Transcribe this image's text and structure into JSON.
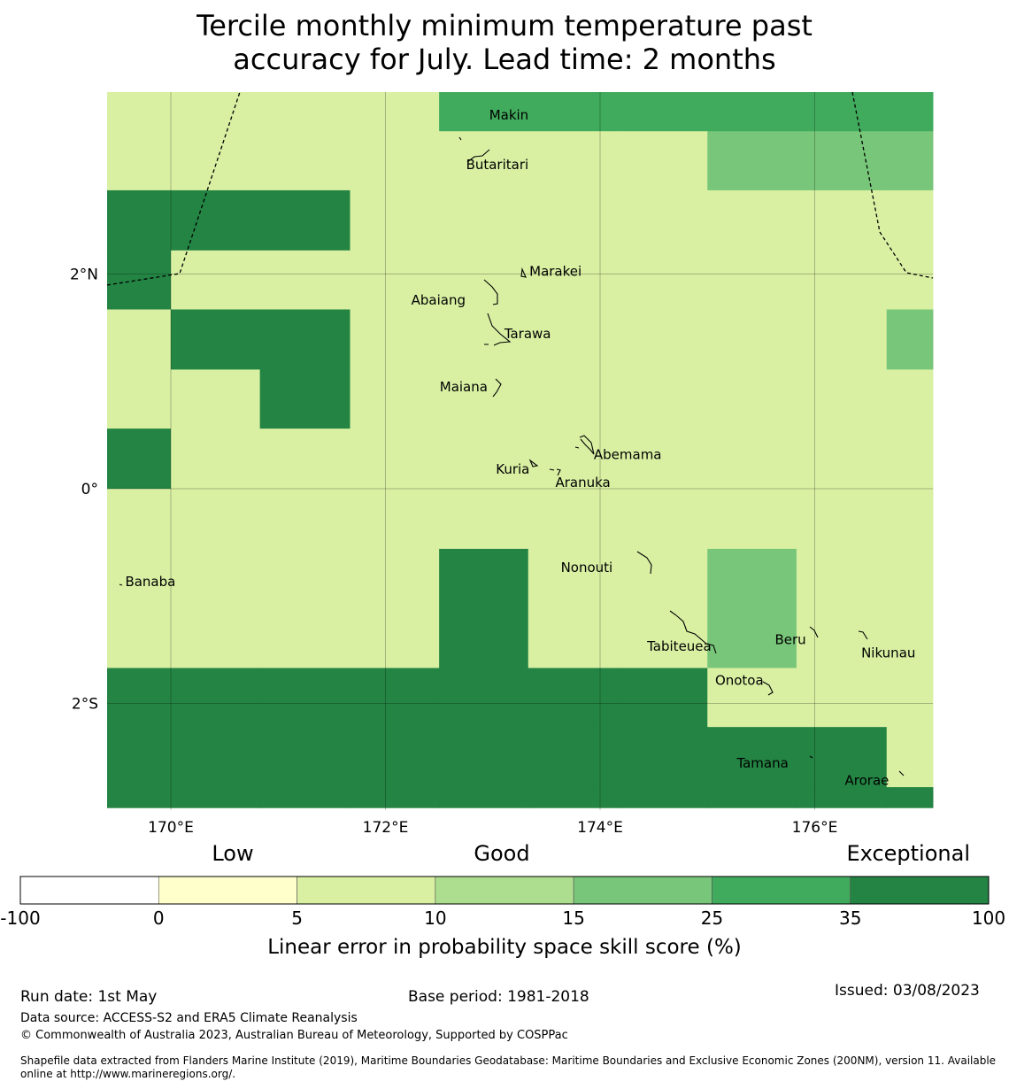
{
  "title_line1": "Tercile monthly minimum temperature past",
  "title_line2": "accuracy for July. Lead time: 2 months",
  "axes": {
    "lat_ticks": [
      "2°N",
      "0°",
      "2°S"
    ],
    "lon_ticks": [
      "170°E",
      "172°E",
      "174°E",
      "176°E"
    ]
  },
  "islands": [
    {
      "name": "Makin",
      "lon": 172.95,
      "lat": 3.4
    },
    {
      "name": "Butaritari",
      "lon": 172.85,
      "lat": 3.1
    },
    {
      "name": "Marakei",
      "lon": 173.3,
      "lat": 2.0
    },
    {
      "name": "Abaiang",
      "lon": 172.9,
      "lat": 1.8
    },
    {
      "name": "Tarawa",
      "lon": 173.05,
      "lat": 1.45
    },
    {
      "name": "Maiana",
      "lon": 173.0,
      "lat": 0.95
    },
    {
      "name": "Abemama",
      "lon": 173.9,
      "lat": 0.4
    },
    {
      "name": "Kuria",
      "lon": 173.4,
      "lat": 0.2
    },
    {
      "name": "Aranuka",
      "lon": 173.6,
      "lat": 0.15
    },
    {
      "name": "Nonouti",
      "lon": 174.45,
      "lat": -0.65
    },
    {
      "name": "Banaba",
      "lon": 169.55,
      "lat": -0.85
    },
    {
      "name": "Tabiteuea",
      "lon": 174.9,
      "lat": -1.4
    },
    {
      "name": "Beru",
      "lon": 176.0,
      "lat": -1.35
    },
    {
      "name": "Nikunau",
      "lon": 176.45,
      "lat": -1.35
    },
    {
      "name": "Onotoa",
      "lon": 175.55,
      "lat": -1.8
    },
    {
      "name": "Tamana",
      "lon": 175.95,
      "lat": -2.5
    },
    {
      "name": "Arorae",
      "lon": 176.8,
      "lat": -2.65
    }
  ],
  "grid": {
    "lon_edges": [
      169.4,
      170.0,
      170.83,
      171.67,
      172.5,
      173.33,
      174.17,
      175.0,
      175.83,
      176.67,
      177.1
    ],
    "lat_edges": [
      3.7,
      3.33,
      2.78,
      2.22,
      1.67,
      1.11,
      0.56,
      0.0,
      -0.56,
      -1.11,
      -1.67,
      -2.22,
      -2.78,
      -2.97
    ],
    "categories": [
      "2222555555",
      "2222222444",
      "6662222222",
      "6222222222",
      "2662222224",
      "2262222222",
      "6222222222",
      "2222222222",
      "2222622422",
      "2222622422",
      "6666666222",
      "6666666662",
      "6666666666"
    ]
  },
  "colorbar": {
    "category_labels": [
      "Low",
      "Good",
      "Exceptional"
    ],
    "bins": [
      {
        "color": "#ffffff"
      },
      {
        "color": "#ffffcc"
      },
      {
        "color": "#d9f0a3"
      },
      {
        "color": "#addd8e"
      },
      {
        "color": "#78c679"
      },
      {
        "color": "#41ab5d"
      },
      {
        "color": "#238443"
      }
    ],
    "tick_labels": [
      "-100",
      "0",
      "5",
      "10",
      "15",
      "25",
      "35",
      "100"
    ],
    "label": "Linear error in probability space skill score (%)"
  },
  "footer": {
    "run_date": "Run date: 1st May",
    "base_period": "Base period: 1981-2018",
    "issued": "Issued: 03/08/2023",
    "data_source": "Data source: ACCESS-S2 and ERA5 Climate Reanalysis",
    "copyright": "© Commonwealth of Australia 2023, Australian Bureau of Meteorology, Supported by COSPPac",
    "shapefile_line1": "Shapefile data extracted from Flanders Marine Institute (2019), Maritime Boundaries Geodatabase: Maritime Boundaries and Exclusive Economic Zones (200NM), version 11. Available",
    "shapefile_line2": "online at http://www.marineregions.org/."
  }
}
